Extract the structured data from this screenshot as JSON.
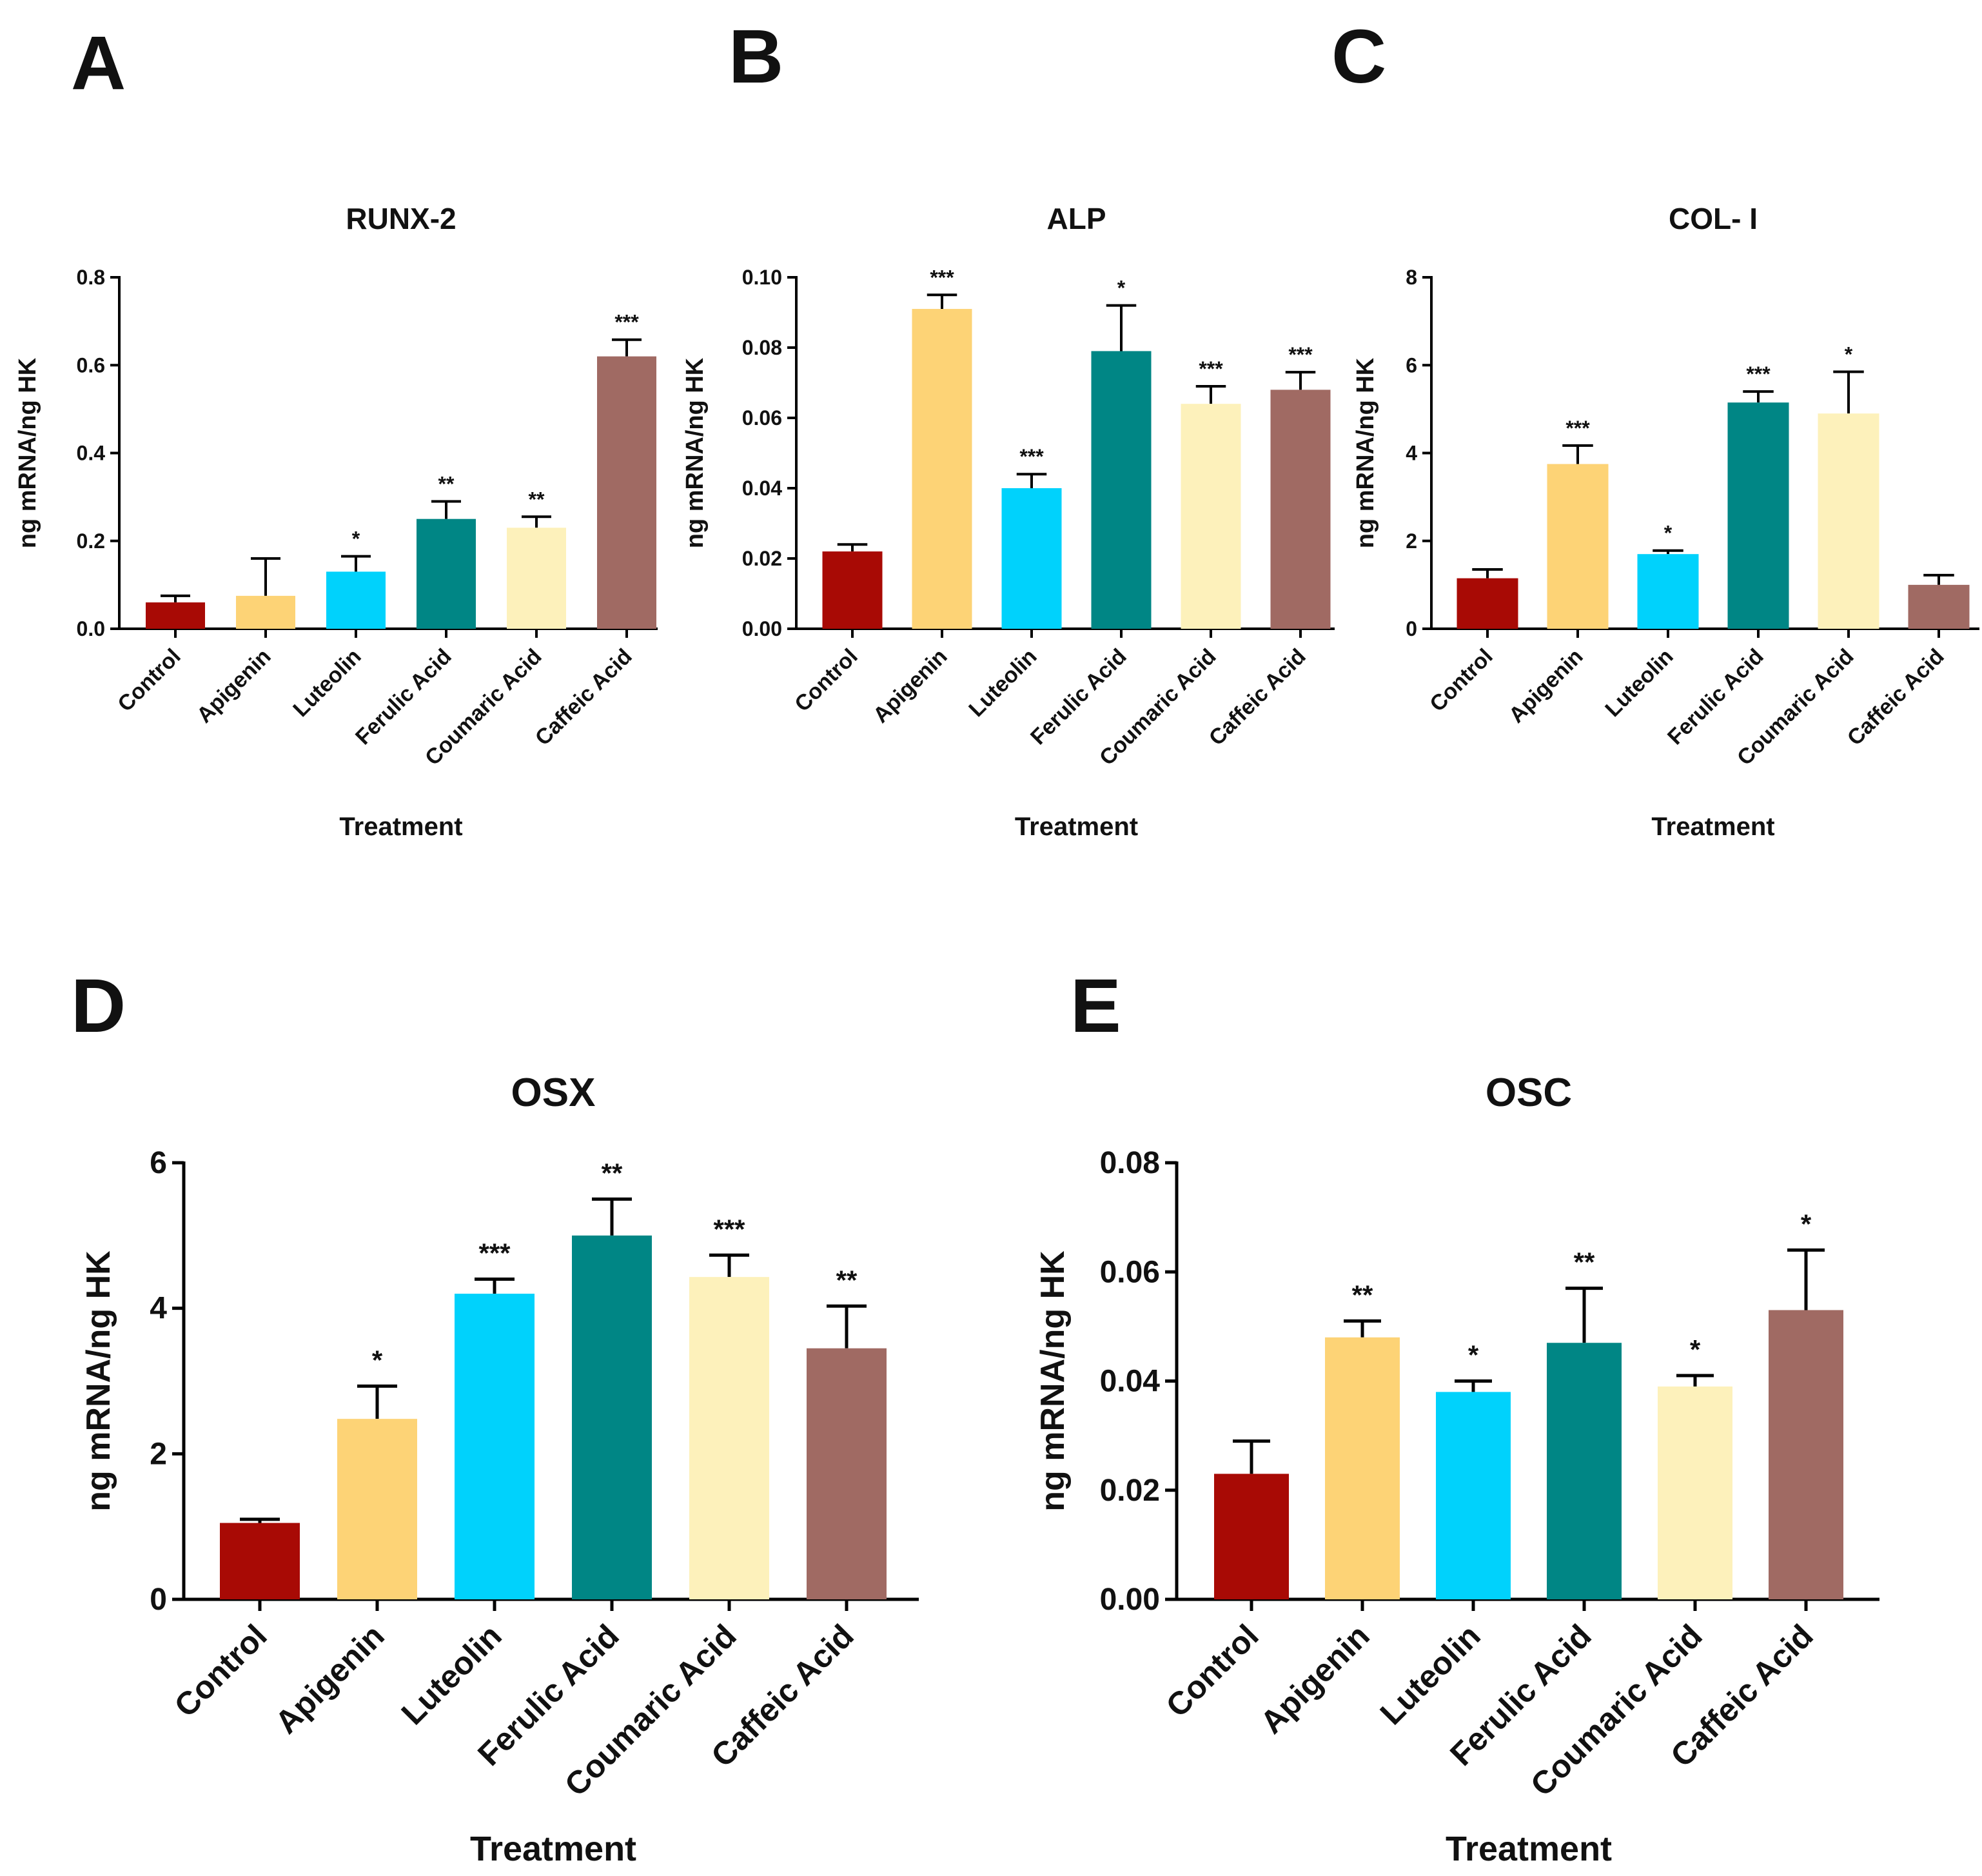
{
  "figure": {
    "colors": {
      "Control": "#a80a05",
      "Apigenin": "#fdd376",
      "Luteolin": "#00d2fc",
      "Ferulic Acid": "#008685",
      "Coumaric Acid": "#fdf1bb",
      "Caffeic Acid": "#a06a63",
      "axis": "#000000"
    }
  },
  "chart_data": [
    {
      "panel": "A",
      "type": "bar",
      "title": "RUNX-2",
      "xlabel": "Treatment",
      "ylabel": "ng mRNA/ng HK",
      "ylim": [
        0,
        0.8
      ],
      "yticks": [
        "0.0",
        "0.2",
        "0.4",
        "0.6",
        "0.8"
      ],
      "categories": [
        "Control",
        "Apigenin",
        "Luteolin",
        "Ferulic Acid",
        "Coumaric Acid",
        "Caffeic Acid"
      ],
      "values": [
        0.06,
        0.075,
        0.13,
        0.25,
        0.23,
        0.62
      ],
      "errors": [
        0.015,
        0.085,
        0.035,
        0.04,
        0.025,
        0.038
      ],
      "significance": [
        "",
        "",
        "*",
        "**",
        "**",
        "***"
      ]
    },
    {
      "panel": "B",
      "type": "bar",
      "title": "ALP",
      "xlabel": "Treatment",
      "ylabel": "ng mRNA/ng HK",
      "ylim": [
        0,
        0.1
      ],
      "yticks": [
        "0.00",
        "0.02",
        "0.04",
        "0.06",
        "0.08",
        "0.10"
      ],
      "categories": [
        "Control",
        "Apigenin",
        "Luteolin",
        "Ferulic Acid",
        "Coumaric Acid",
        "Caffeic Acid"
      ],
      "values": [
        0.022,
        0.091,
        0.04,
        0.079,
        0.064,
        0.068
      ],
      "errors": [
        0.002,
        0.004,
        0.004,
        0.013,
        0.005,
        0.005
      ],
      "significance": [
        "",
        "***",
        "***",
        "*",
        "***",
        "***"
      ]
    },
    {
      "panel": "C",
      "type": "bar",
      "title": "COL- I",
      "xlabel": "Treatment",
      "ylabel": "ng mRNA/ng HK",
      "ylim": [
        0,
        8
      ],
      "yticks": [
        "0",
        "2",
        "4",
        "6",
        "8"
      ],
      "categories": [
        "Control",
        "Apigenin",
        "Luteolin",
        "Ferulic Acid",
        "Coumaric Acid",
        "Caffeic Acid"
      ],
      "values": [
        1.15,
        3.75,
        1.7,
        5.15,
        4.9,
        1.0
      ],
      "errors": [
        0.2,
        0.42,
        0.08,
        0.25,
        0.95,
        0.22
      ],
      "significance": [
        "",
        "***",
        "*",
        "***",
        "*",
        ""
      ]
    },
    {
      "panel": "D",
      "type": "bar",
      "title": "OSX",
      "xlabel": "Treatment",
      "ylabel": "ng mRNA/ng HK",
      "ylim": [
        0,
        6
      ],
      "yticks": [
        "0",
        "2",
        "4",
        "6"
      ],
      "categories": [
        "Control",
        "Apigenin",
        "Luteolin",
        "Ferulic Acid",
        "Coumaric Acid",
        "Caffeic Acid"
      ],
      "values": [
        1.05,
        2.48,
        4.2,
        5.0,
        4.43,
        3.45
      ],
      "errors": [
        0.05,
        0.45,
        0.2,
        0.5,
        0.3,
        0.58
      ],
      "significance": [
        "",
        "*",
        "***",
        "**",
        "***",
        "**"
      ]
    },
    {
      "panel": "E",
      "type": "bar",
      "title": "OSC",
      "xlabel": "Treatment",
      "ylabel": "ng mRNA/ng HK",
      "ylim": [
        0,
        0.08
      ],
      "yticks": [
        "0.00",
        "0.02",
        "0.04",
        "0.06",
        "0.08"
      ],
      "categories": [
        "Control",
        "Apigenin",
        "Luteolin",
        "Ferulic Acid",
        "Coumaric Acid",
        "Caffeic Acid"
      ],
      "values": [
        0.023,
        0.048,
        0.038,
        0.047,
        0.039,
        0.053
      ],
      "errors": [
        0.006,
        0.003,
        0.002,
        0.01,
        0.002,
        0.011
      ],
      "significance": [
        "",
        "**",
        "*",
        "**",
        "*",
        "*"
      ]
    }
  ]
}
